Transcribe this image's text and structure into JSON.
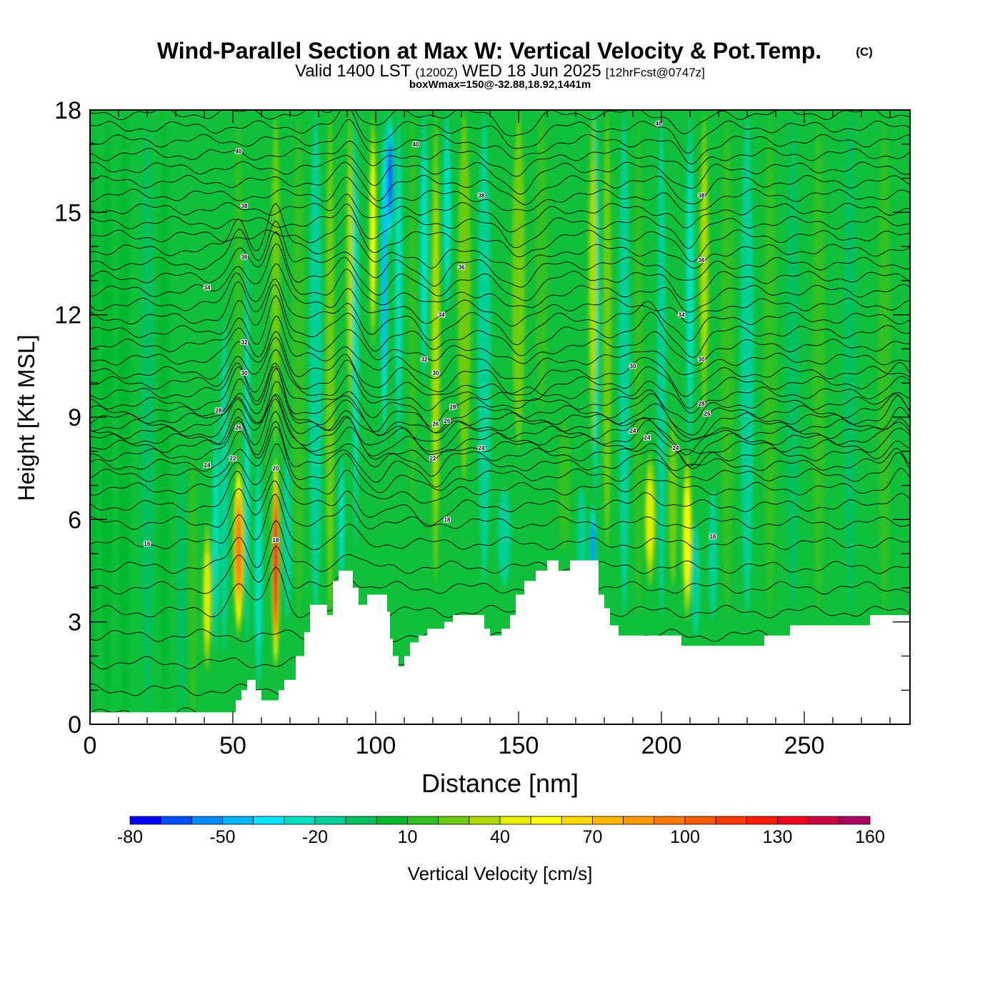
{
  "chart_data": {
    "type": "heatmap",
    "title": "Wind-Parallel Section at Max W: Vertical Velocity & Pot.Temp.",
    "title_mark": "(C)",
    "subtitle": {
      "valid_prefix": "Valid 1400 LST",
      "utc": "(1200Z)",
      "date": "WED 18 Jun 2025",
      "forecast": "[12hrFcst@0747z]"
    },
    "note": "boxWmax=150@-32.88,18.92,1441m",
    "xlabel": "Distance [nm]",
    "ylabel": "Height [Kft MSL]",
    "xlim": [
      0,
      287
    ],
    "ylim": [
      0,
      18
    ],
    "x_ticks": [
      "0",
      "50",
      "100",
      "150",
      "200",
      "250"
    ],
    "x_tick_values": [
      0,
      50,
      100,
      150,
      200,
      250
    ],
    "y_ticks": [
      "0",
      "3",
      "6",
      "9",
      "12",
      "15",
      "18"
    ],
    "y_tick_values": [
      0,
      3,
      6,
      9,
      12,
      15,
      18
    ],
    "colorbar": {
      "label": "Vertical Velocity [cm/s]",
      "levels": [
        -80,
        -70,
        -60,
        -50,
        -40,
        -30,
        -20,
        -10,
        0,
        10,
        20,
        30,
        40,
        50,
        60,
        70,
        80,
        90,
        100,
        110,
        120,
        130,
        140,
        150,
        160
      ],
      "tick_labels": [
        "-80",
        "-50",
        "-20",
        "10",
        "40",
        "70",
        "100",
        "130",
        "160"
      ],
      "tick_values": [
        -80,
        -50,
        -20,
        10,
        40,
        70,
        100,
        130,
        160
      ],
      "colors": [
        "#0000ff",
        "#0050ff",
        "#008cff",
        "#00b4ff",
        "#00e6ff",
        "#00e0c0",
        "#00d098",
        "#00c060",
        "#00b82e",
        "#30c020",
        "#70cc10",
        "#b0dc00",
        "#e8f000",
        "#ffff00",
        "#ffd800",
        "#ffb800",
        "#ff9800",
        "#ff7800",
        "#ff5a00",
        "#ff3a00",
        "#ff1a00",
        "#ee0020",
        "#cc0040",
        "#aa0060"
      ]
    },
    "terrain_kft": [
      [
        0,
        0.35
      ],
      [
        50,
        0.35
      ],
      [
        51,
        0.7
      ],
      [
        53,
        1.0
      ],
      [
        55,
        1.3
      ],
      [
        58,
        1.0
      ],
      [
        60,
        0.7
      ],
      [
        66,
        1.0
      ],
      [
        68,
        1.3
      ],
      [
        72,
        2.0
      ],
      [
        75,
        2.7
      ],
      [
        77,
        3.5
      ],
      [
        82,
        3.5
      ],
      [
        83,
        3.2
      ],
      [
        85,
        4.2
      ],
      [
        87,
        4.5
      ],
      [
        91,
        4.5
      ],
      [
        92,
        4.0
      ],
      [
        94,
        3.5
      ],
      [
        97,
        3.8
      ],
      [
        101,
        3.8
      ],
      [
        104,
        3.3
      ],
      [
        105,
        2.5
      ],
      [
        106,
        2.0
      ],
      [
        108,
        1.7
      ],
      [
        110,
        2.0
      ],
      [
        112,
        2.4
      ],
      [
        115,
        2.6
      ],
      [
        118,
        2.8
      ],
      [
        124,
        3.0
      ],
      [
        127,
        3.2
      ],
      [
        136,
        3.2
      ],
      [
        138,
        2.8
      ],
      [
        140,
        2.6
      ],
      [
        144,
        2.8
      ],
      [
        147,
        3.2
      ],
      [
        149,
        3.8
      ],
      [
        152,
        4.2
      ],
      [
        156,
        4.5
      ],
      [
        160,
        4.8
      ],
      [
        164,
        4.5
      ],
      [
        168,
        4.8
      ],
      [
        176,
        4.8
      ],
      [
        178,
        3.8
      ],
      [
        180,
        3.4
      ],
      [
        182,
        2.9
      ],
      [
        185,
        2.6
      ],
      [
        206,
        2.6
      ],
      [
        207,
        2.3
      ],
      [
        235,
        2.3
      ],
      [
        236,
        2.6
      ],
      [
        244,
        2.6
      ],
      [
        245,
        2.9
      ],
      [
        272,
        2.9
      ],
      [
        273,
        3.2
      ],
      [
        287,
        3.2
      ]
    ],
    "velocity_columns": [
      {
        "x": 1,
        "w": 2,
        "peak": 3,
        "y0": 0,
        "y1": 18
      },
      {
        "x": 6,
        "w": 3,
        "peak": 5,
        "y0": 0,
        "y1": 18
      },
      {
        "x": 12,
        "w": 3,
        "peak": 3,
        "y0": 0,
        "y1": 18
      },
      {
        "x": 20,
        "w": 3,
        "peak": -5,
        "y0": 0,
        "y1": 18
      },
      {
        "x": 26,
        "w": 2.5,
        "peak": 5,
        "y0": 0,
        "y1": 18
      },
      {
        "x": 32,
        "w": 2,
        "peak": -5,
        "y0": 0,
        "y1": 8
      },
      {
        "x": 36,
        "w": 2,
        "peak": 10,
        "y0": 0,
        "y1": 8
      },
      {
        "x": 41,
        "w": 2,
        "peak": 40,
        "y0": 1.5,
        "y1": 6
      },
      {
        "x": 44,
        "w": 1.6,
        "peak": -20,
        "y0": 2,
        "y1": 9
      },
      {
        "x": 47,
        "w": 2,
        "peak": -10,
        "y0": 2,
        "y1": 12
      },
      {
        "x": 52,
        "w": 2.4,
        "peak": 90,
        "y0": 2.5,
        "y1": 7.8
      },
      {
        "x": 52,
        "w": 2.0,
        "peak": 15,
        "y0": 7.5,
        "y1": 18
      },
      {
        "x": 55,
        "w": 1.4,
        "peak": -20,
        "y0": 2,
        "y1": 14
      },
      {
        "x": 59,
        "w": 2,
        "peak": -20,
        "y0": 1,
        "y1": 8
      },
      {
        "x": 65,
        "w": 1.8,
        "peak": 130,
        "y0": 1.5,
        "y1": 8
      },
      {
        "x": 65,
        "w": 2,
        "peak": 20,
        "y0": 8,
        "y1": 18
      },
      {
        "x": 69,
        "w": 2,
        "peak": -15,
        "y0": 3,
        "y1": 8
      },
      {
        "x": 73,
        "w": 3,
        "peak": 15,
        "y0": 3,
        "y1": 18
      },
      {
        "x": 79,
        "w": 3,
        "peak": -10,
        "y0": 3,
        "y1": 18
      },
      {
        "x": 84,
        "w": 2,
        "peak": 20,
        "y0": 3,
        "y1": 18
      },
      {
        "x": 88,
        "w": 1.5,
        "peak": -25,
        "y0": 4,
        "y1": 8
      },
      {
        "x": 91,
        "w": 1.6,
        "peak": 35,
        "y0": 9,
        "y1": 18
      },
      {
        "x": 93,
        "w": 1.5,
        "peak": -25,
        "y0": 5,
        "y1": 18
      },
      {
        "x": 99,
        "w": 1.6,
        "peak": 55,
        "y0": 11,
        "y1": 18
      },
      {
        "x": 103,
        "w": 1.6,
        "peak": -45,
        "y0": 8,
        "y1": 18
      },
      {
        "x": 105,
        "w": 1.8,
        "peak": -60,
        "y0": 14,
        "y1": 18
      },
      {
        "x": 108,
        "w": 1.8,
        "peak": -20,
        "y0": 8,
        "y1": 18
      },
      {
        "x": 113,
        "w": 2,
        "peak": 10,
        "y0": 6,
        "y1": 18
      },
      {
        "x": 117,
        "w": 2,
        "peak": -25,
        "y0": 10,
        "y1": 18
      },
      {
        "x": 121,
        "w": 2,
        "peak": 30,
        "y0": 4,
        "y1": 18
      },
      {
        "x": 125,
        "w": 2,
        "peak": -25,
        "y0": 12,
        "y1": 18
      },
      {
        "x": 131,
        "w": 3,
        "peak": 25,
        "y0": 7,
        "y1": 18
      },
      {
        "x": 138,
        "w": 3,
        "peak": -10,
        "y0": 4,
        "y1": 18
      },
      {
        "x": 145,
        "w": 3,
        "peak": -15,
        "y0": 4,
        "y1": 7
      },
      {
        "x": 150,
        "w": 3,
        "peak": 20,
        "y0": 8,
        "y1": 18
      },
      {
        "x": 158,
        "w": 3,
        "peak": 10,
        "y0": 9,
        "y1": 18
      },
      {
        "x": 166,
        "w": 3,
        "peak": 15,
        "y0": 5,
        "y1": 9
      },
      {
        "x": 172,
        "w": 2,
        "peak": -15,
        "y0": 4,
        "y1": 7
      },
      {
        "x": 176,
        "w": 1.5,
        "peak": -50,
        "y0": 4,
        "y1": 6.5
      },
      {
        "x": 177,
        "w": 2,
        "peak": -20,
        "y0": 6.5,
        "y1": 18
      },
      {
        "x": 176,
        "w": 2,
        "peak": 35,
        "y0": 8,
        "y1": 18
      },
      {
        "x": 181,
        "w": 2,
        "peak": 20,
        "y0": 5,
        "y1": 18
      },
      {
        "x": 187,
        "w": 2.5,
        "peak": -10,
        "y0": 3,
        "y1": 18
      },
      {
        "x": 192,
        "w": 2,
        "peak": 15,
        "y0": 3,
        "y1": 18
      },
      {
        "x": 196,
        "w": 2.5,
        "peak": 40,
        "y0": 4,
        "y1": 8
      },
      {
        "x": 200,
        "w": 2,
        "peak": -15,
        "y0": 3,
        "y1": 18
      },
      {
        "x": 204,
        "w": 2,
        "peak": 20,
        "y0": 4,
        "y1": 9
      },
      {
        "x": 209,
        "w": 2.2,
        "peak": 55,
        "y0": 3,
        "y1": 8
      },
      {
        "x": 210,
        "w": 2,
        "peak": -25,
        "y0": 8,
        "y1": 18
      },
      {
        "x": 212,
        "w": 2,
        "peak": -15,
        "y0": 2.5,
        "y1": 6
      },
      {
        "x": 215,
        "w": 2,
        "peak": 35,
        "y0": 9,
        "y1": 18
      },
      {
        "x": 218,
        "w": 2,
        "peak": -10,
        "y0": 3,
        "y1": 7
      },
      {
        "x": 223,
        "w": 3,
        "peak": 10,
        "y0": 3,
        "y1": 18
      },
      {
        "x": 230,
        "w": 3,
        "peak": -10,
        "y0": 3,
        "y1": 18
      },
      {
        "x": 238,
        "w": 3,
        "peak": 15,
        "y0": 3,
        "y1": 18
      },
      {
        "x": 246,
        "w": 3,
        "peak": -5,
        "y0": 3,
        "y1": 18
      },
      {
        "x": 255,
        "w": 3,
        "peak": 10,
        "y0": 3,
        "y1": 18
      },
      {
        "x": 266,
        "w": 3,
        "peak": -5,
        "y0": 3,
        "y1": 18
      },
      {
        "x": 278,
        "w": 3,
        "peak": 10,
        "y0": 3,
        "y1": 18
      }
    ],
    "isentropes": {
      "base_kft": [
        0.3,
        1.0,
        1.8,
        2.6,
        3.3,
        4.0,
        4.6,
        5.3,
        5.9,
        6.4,
        6.9,
        7.3,
        7.6,
        7.9,
        8.15,
        8.35,
        8.55,
        8.75,
        8.95,
        9.15,
        9.4,
        9.7,
        10.0,
        10.3,
        10.7,
        11.1,
        11.5,
        11.9,
        12.3,
        12.7,
        13.1,
        13.5,
        13.9,
        14.3,
        14.7,
        15.1,
        15.5,
        15.9,
        16.3,
        16.7,
        17.1,
        17.5,
        17.9
      ],
      "bumps": [
        {
          "x": 52,
          "w": 4,
          "amp": 0.9,
          "y0": 3,
          "y1": 14
        },
        {
          "x": 65,
          "w": 4,
          "amp": 1.3,
          "y0": 3,
          "y1": 14
        },
        {
          "x": 90,
          "w": 4,
          "amp": 0.5,
          "y0": 4,
          "y1": 18
        },
        {
          "x": 100,
          "w": 5,
          "amp": -0.4,
          "y0": 6,
          "y1": 18
        },
        {
          "x": 120,
          "w": 6,
          "amp": -0.5,
          "y0": 6,
          "y1": 14
        },
        {
          "x": 150,
          "w": 8,
          "amp": -0.6,
          "y0": 10,
          "y1": 18
        },
        {
          "x": 196,
          "w": 5,
          "amp": 0.4,
          "y0": 6,
          "y1": 12
        },
        {
          "x": 210,
          "w": 6,
          "amp": -0.6,
          "y0": 8,
          "y1": 18
        },
        {
          "x": 283,
          "w": 4,
          "amp": 0.5,
          "y0": 6,
          "y1": 10
        }
      ]
    },
    "contour_labels": [
      {
        "text": "40",
        "x": 52,
        "y": 16.8
      },
      {
        "text": "40",
        "x": 114,
        "y": 17.0
      },
      {
        "text": "40",
        "x": 199,
        "y": 17.6
      },
      {
        "text": "38",
        "x": 54,
        "y": 15.2
      },
      {
        "text": "38",
        "x": 137,
        "y": 15.5
      },
      {
        "text": "38",
        "x": 214,
        "y": 15.5
      },
      {
        "text": "36",
        "x": 54,
        "y": 13.7
      },
      {
        "text": "36",
        "x": 130,
        "y": 13.4
      },
      {
        "text": "36",
        "x": 214,
        "y": 13.6
      },
      {
        "text": "34",
        "x": 41,
        "y": 12.8
      },
      {
        "text": "34",
        "x": 123,
        "y": 12.0
      },
      {
        "text": "34",
        "x": 207,
        "y": 12.0
      },
      {
        "text": "32",
        "x": 54,
        "y": 11.2
      },
      {
        "text": "32",
        "x": 117,
        "y": 10.7
      },
      {
        "text": "30",
        "x": 54,
        "y": 10.3
      },
      {
        "text": "30",
        "x": 121,
        "y": 10.3
      },
      {
        "text": "30",
        "x": 190,
        "y": 10.5
      },
      {
        "text": "30",
        "x": 214,
        "y": 10.7
      },
      {
        "text": "28",
        "x": 45,
        "y": 9.2
      },
      {
        "text": "28",
        "x": 127,
        "y": 9.3
      },
      {
        "text": "28",
        "x": 214,
        "y": 9.4
      },
      {
        "text": "26",
        "x": 52,
        "y": 8.7
      },
      {
        "text": "26",
        "x": 125,
        "y": 8.9
      },
      {
        "text": "26",
        "x": 121,
        "y": 8.8
      },
      {
        "text": "26",
        "x": 216,
        "y": 9.1
      },
      {
        "text": "24",
        "x": 137,
        "y": 8.1
      },
      {
        "text": "24",
        "x": 190,
        "y": 8.6
      },
      {
        "text": "24",
        "x": 195,
        "y": 8.4
      },
      {
        "text": "24",
        "x": 205,
        "y": 8.1
      },
      {
        "text": "24",
        "x": 41,
        "y": 7.6
      },
      {
        "text": "22",
        "x": 50,
        "y": 7.8
      },
      {
        "text": "22",
        "x": 120,
        "y": 7.8
      },
      {
        "text": "20",
        "x": 65,
        "y": 7.5
      },
      {
        "text": "18",
        "x": 125,
        "y": 6.0
      },
      {
        "text": "18",
        "x": 65,
        "y": 5.4
      },
      {
        "text": "16",
        "x": 20,
        "y": 5.3
      },
      {
        "text": "16",
        "x": 218,
        "y": 5.5
      }
    ]
  }
}
